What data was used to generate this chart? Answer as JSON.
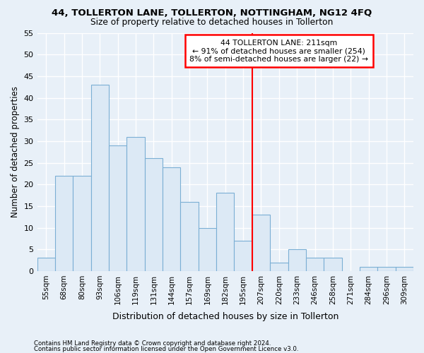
{
  "title": "44, TOLLERTON LANE, TOLLERTON, NOTTINGHAM, NG12 4FQ",
  "subtitle": "Size of property relative to detached houses in Tollerton",
  "xlabel": "Distribution of detached houses by size in Tollerton",
  "ylabel": "Number of detached properties",
  "categories": [
    "55sqm",
    "68sqm",
    "80sqm",
    "93sqm",
    "106sqm",
    "119sqm",
    "131sqm",
    "144sqm",
    "157sqm",
    "169sqm",
    "182sqm",
    "195sqm",
    "207sqm",
    "220sqm",
    "233sqm",
    "246sqm",
    "258sqm",
    "271sqm",
    "284sqm",
    "296sqm",
    "309sqm"
  ],
  "values": [
    3,
    22,
    22,
    43,
    29,
    31,
    26,
    24,
    16,
    10,
    18,
    7,
    13,
    2,
    5,
    3,
    3,
    0,
    1,
    1,
    1
  ],
  "bar_color": "#dce9f5",
  "bar_edge_color": "#7bafd4",
  "background_color": "#e8f0f8",
  "grid_color": "#ffffff",
  "red_line_index": 12,
  "annotation_title": "44 TOLLERTON LANE: 211sqm",
  "annotation_line1": "← 91% of detached houses are smaller (254)",
  "annotation_line2": "8% of semi-detached houses are larger (22) →",
  "footer1": "Contains HM Land Registry data © Crown copyright and database right 2024.",
  "footer2": "Contains public sector information licensed under the Open Government Licence v3.0.",
  "ylim": [
    0,
    55
  ],
  "yticks": [
    0,
    5,
    10,
    15,
    20,
    25,
    30,
    35,
    40,
    45,
    50,
    55
  ]
}
